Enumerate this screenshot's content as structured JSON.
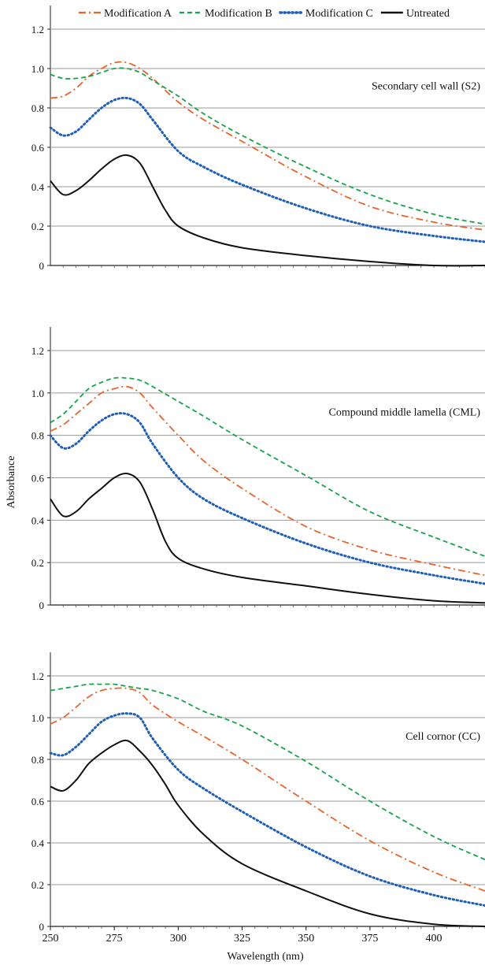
{
  "figure": {
    "ylabel": "Absorbance",
    "xlabel": "Wavelength (nm)"
  },
  "legend": [
    {
      "name": "Modification A",
      "color": "#e8642e",
      "dash": "dashdot"
    },
    {
      "name": "Modification B",
      "color": "#17a34a",
      "dash": "dash"
    },
    {
      "name": "Modification C",
      "color": "#1f5fb5",
      "dash": "dot"
    },
    {
      "name": "Untreated",
      "color": "#111111",
      "dash": "solid"
    }
  ],
  "chart_data": [
    {
      "type": "line",
      "annotation": "Secondary cell wall (S2)",
      "xlim": [
        250,
        420
      ],
      "ylim": [
        0,
        1.2
      ],
      "yticks": [
        "0",
        "0.2",
        "0.4",
        "0.6",
        "0.8",
        "1.0",
        "1.2"
      ],
      "xticks": [],
      "grid": true,
      "series": [
        {
          "name": "Modification A",
          "x": [
            250,
            255,
            260,
            265,
            270,
            275,
            280,
            285,
            290,
            300,
            310,
            325,
            350,
            375,
            400,
            420
          ],
          "y": [
            0.85,
            0.86,
            0.9,
            0.96,
            1.0,
            1.03,
            1.03,
            1.0,
            0.95,
            0.83,
            0.74,
            0.63,
            0.45,
            0.3,
            0.22,
            0.18
          ]
        },
        {
          "name": "Modification B",
          "x": [
            250,
            255,
            260,
            265,
            270,
            275,
            280,
            285,
            290,
            300,
            310,
            325,
            350,
            375,
            400,
            420
          ],
          "y": [
            0.97,
            0.95,
            0.95,
            0.96,
            0.98,
            1.0,
            1.0,
            0.98,
            0.94,
            0.86,
            0.77,
            0.66,
            0.5,
            0.36,
            0.26,
            0.21
          ]
        },
        {
          "name": "Modification C",
          "x": [
            250,
            255,
            260,
            265,
            270,
            275,
            280,
            285,
            290,
            300,
            310,
            325,
            350,
            375,
            400,
            420
          ],
          "y": [
            0.7,
            0.66,
            0.68,
            0.74,
            0.8,
            0.84,
            0.85,
            0.82,
            0.74,
            0.58,
            0.5,
            0.41,
            0.29,
            0.2,
            0.15,
            0.12
          ]
        },
        {
          "name": "Untreated",
          "x": [
            250,
            255,
            260,
            265,
            270,
            275,
            280,
            285,
            290,
            295,
            300,
            310,
            325,
            350,
            375,
            400,
            420
          ],
          "y": [
            0.43,
            0.36,
            0.38,
            0.43,
            0.49,
            0.54,
            0.56,
            0.52,
            0.4,
            0.28,
            0.2,
            0.14,
            0.09,
            0.05,
            0.02,
            0.0,
            0.0
          ]
        }
      ]
    },
    {
      "type": "line",
      "annotation": "Compound middle lamella (CML)",
      "xlim": [
        250,
        420
      ],
      "ylim": [
        0,
        1.2
      ],
      "yticks": [
        "0",
        "0.2",
        "0.4",
        "0.6",
        "0.8",
        "1.0",
        "1.2"
      ],
      "xticks": [],
      "grid": true,
      "series": [
        {
          "name": "Modification A",
          "x": [
            250,
            255,
            260,
            265,
            270,
            275,
            280,
            285,
            290,
            300,
            310,
            325,
            350,
            375,
            400,
            420
          ],
          "y": [
            0.82,
            0.85,
            0.9,
            0.95,
            1.0,
            1.02,
            1.03,
            1.0,
            0.93,
            0.8,
            0.68,
            0.55,
            0.37,
            0.26,
            0.19,
            0.14
          ]
        },
        {
          "name": "Modification B",
          "x": [
            250,
            255,
            260,
            265,
            270,
            275,
            280,
            285,
            290,
            300,
            310,
            325,
            350,
            375,
            400,
            420
          ],
          "y": [
            0.86,
            0.9,
            0.96,
            1.02,
            1.05,
            1.07,
            1.07,
            1.06,
            1.03,
            0.96,
            0.89,
            0.78,
            0.61,
            0.44,
            0.32,
            0.23
          ]
        },
        {
          "name": "Modification C",
          "x": [
            250,
            255,
            260,
            265,
            270,
            275,
            280,
            285,
            290,
            300,
            310,
            325,
            350,
            375,
            400,
            420
          ],
          "y": [
            0.8,
            0.74,
            0.76,
            0.82,
            0.87,
            0.9,
            0.9,
            0.86,
            0.76,
            0.6,
            0.5,
            0.41,
            0.29,
            0.2,
            0.14,
            0.1
          ]
        },
        {
          "name": "Untreated",
          "x": [
            250,
            255,
            260,
            265,
            270,
            275,
            280,
            285,
            290,
            295,
            300,
            310,
            325,
            350,
            375,
            400,
            420
          ],
          "y": [
            0.5,
            0.42,
            0.44,
            0.5,
            0.55,
            0.6,
            0.62,
            0.58,
            0.45,
            0.3,
            0.22,
            0.17,
            0.13,
            0.09,
            0.05,
            0.02,
            0.01
          ]
        }
      ]
    },
    {
      "type": "line",
      "annotation": "Cell cornor (CC)",
      "xlim": [
        250,
        420
      ],
      "ylim": [
        0,
        1.2
      ],
      "yticks": [
        "0",
        "0.2",
        "0.4",
        "0.6",
        "0.8",
        "1.0",
        "1.2"
      ],
      "xticks": [
        "250",
        "275",
        "300",
        "325",
        "350",
        "375",
        "400"
      ],
      "grid": true,
      "series": [
        {
          "name": "Modification A",
          "x": [
            250,
            255,
            260,
            265,
            270,
            275,
            280,
            285,
            290,
            300,
            310,
            325,
            350,
            375,
            400,
            420
          ],
          "y": [
            0.97,
            1.0,
            1.05,
            1.1,
            1.13,
            1.14,
            1.14,
            1.12,
            1.06,
            0.98,
            0.91,
            0.8,
            0.6,
            0.41,
            0.26,
            0.17
          ]
        },
        {
          "name": "Modification B",
          "x": [
            250,
            255,
            260,
            265,
            270,
            275,
            280,
            285,
            290,
            300,
            310,
            325,
            350,
            375,
            400,
            420
          ],
          "y": [
            1.13,
            1.14,
            1.15,
            1.16,
            1.16,
            1.16,
            1.15,
            1.14,
            1.13,
            1.09,
            1.03,
            0.96,
            0.79,
            0.6,
            0.43,
            0.32
          ]
        },
        {
          "name": "Modification C",
          "x": [
            250,
            255,
            260,
            265,
            270,
            275,
            280,
            285,
            290,
            300,
            310,
            325,
            350,
            375,
            400,
            420
          ],
          "y": [
            0.83,
            0.82,
            0.86,
            0.92,
            0.98,
            1.01,
            1.02,
            1.0,
            0.9,
            0.75,
            0.66,
            0.55,
            0.38,
            0.24,
            0.15,
            0.1
          ]
        },
        {
          "name": "Untreated",
          "x": [
            250,
            255,
            260,
            265,
            270,
            275,
            280,
            285,
            290,
            295,
            300,
            310,
            325,
            350,
            375,
            400,
            420
          ],
          "y": [
            0.67,
            0.65,
            0.7,
            0.78,
            0.83,
            0.87,
            0.89,
            0.84,
            0.77,
            0.68,
            0.58,
            0.44,
            0.3,
            0.17,
            0.06,
            0.01,
            0.0
          ]
        }
      ]
    }
  ]
}
